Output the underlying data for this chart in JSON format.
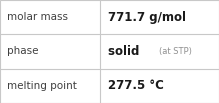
{
  "rows": [
    {
      "label": "molar mass",
      "value": "771.7 g/mol",
      "value_suffix": null
    },
    {
      "label": "phase",
      "value": "solid",
      "value_suffix": "(at STP)"
    },
    {
      "label": "melting point",
      "value": "277.5 °C",
      "value_suffix": null
    }
  ],
  "background_color": "#ffffff",
  "border_color": "#c8c8c8",
  "label_color": "#404040",
  "value_color": "#1a1a1a",
  "suffix_color": "#909090",
  "label_fontsize": 7.5,
  "value_fontsize": 8.5,
  "suffix_fontsize": 6.0,
  "col_split": 0.455,
  "fig_width": 2.19,
  "fig_height": 1.03,
  "dpi": 100
}
